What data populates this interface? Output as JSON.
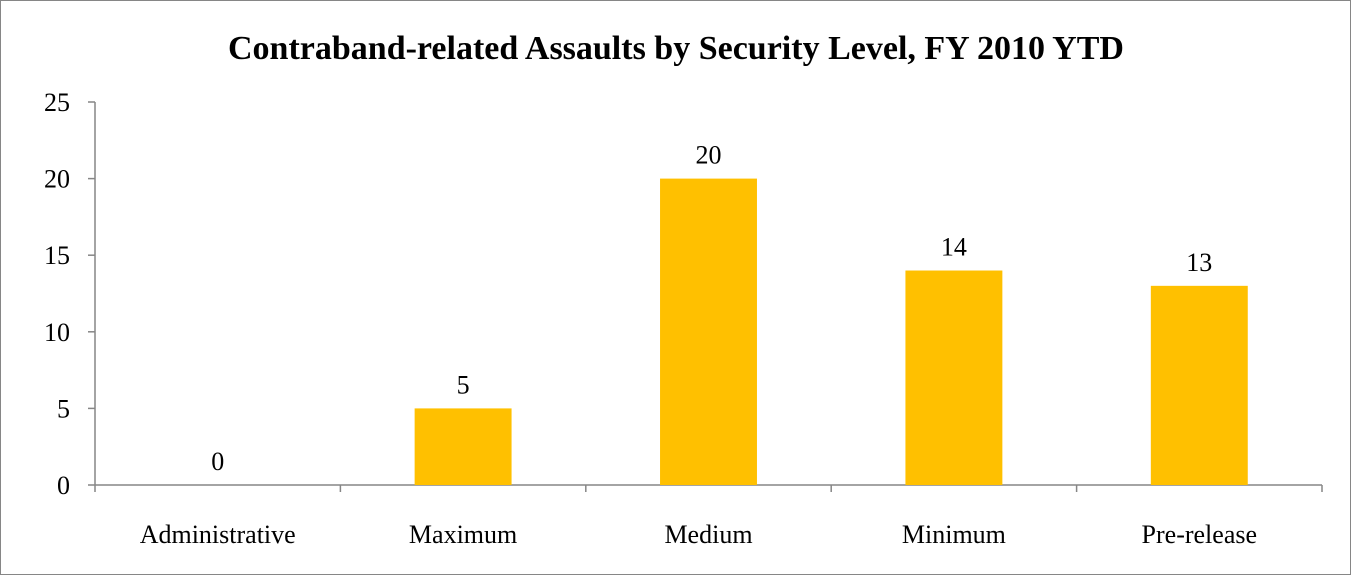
{
  "chart_data": {
    "type": "bar",
    "title": "Contraband-related Assaults by Security Level, FY 2010 YTD",
    "xlabel": "",
    "ylabel": "",
    "categories": [
      "Administrative",
      "Maximum",
      "Medium",
      "Minimum",
      "Pre-release"
    ],
    "values": [
      0,
      5,
      20,
      14,
      13
    ],
    "data_labels": [
      "0",
      "5",
      "20",
      "14",
      "13"
    ],
    "ylim": [
      0,
      25
    ],
    "yticks": [
      0,
      5,
      10,
      15,
      20,
      25
    ],
    "ytick_labels": [
      "0",
      "5",
      "10",
      "15",
      "20",
      "25"
    ],
    "grid": false,
    "legend": "none",
    "bar_color": "#FFC000",
    "axis_color": "#868686"
  }
}
